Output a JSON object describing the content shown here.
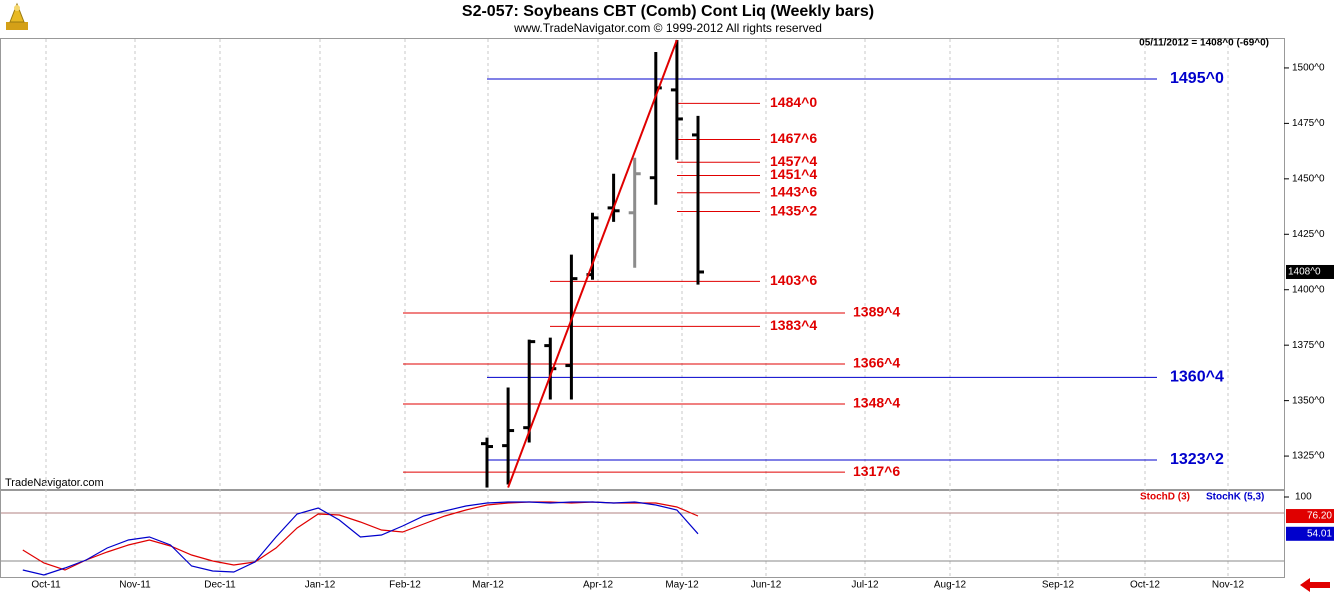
{
  "chart_data": [
    {
      "type": "ohlc",
      "title": "S2-057:  Soybeans CBT (Comb) Cont Liq  (Weekly bars)",
      "subtitle": "www.TradeNavigator.com © 1999-2012 All rights reserved",
      "header": "05/11/2012 = 1408^0 (-69^0)",
      "watermark": "TradeNavigator.com",
      "categories": [
        null,
        null,
        null,
        null,
        null,
        null,
        null,
        null,
        null,
        null,
        null,
        null,
        null,
        null,
        null,
        null,
        null,
        null,
        null,
        null,
        null,
        null,
        null,
        null,
        null,
        null,
        null,
        null,
        null,
        null,
        null,
        null,
        null
      ],
      "month_labels": [
        "Oct-11",
        "Nov-11",
        "Dec-11",
        "Jan-12",
        "Feb-12",
        "Mar-12",
        "Apr-12",
        "May-12",
        "Jun-12",
        "Jul-12",
        "Aug-12",
        "Sep-12",
        "Oct-12",
        "Nov-12"
      ],
      "open": [
        null,
        null,
        null,
        null,
        null,
        null,
        null,
        null,
        null,
        null,
        null,
        null,
        null,
        null,
        null,
        null,
        null,
        null,
        null,
        null,
        null,
        null,
        1330.6,
        1329.7,
        1337.8,
        1374.8,
        1365.8,
        1406.8,
        1436.9,
        1434.7,
        1450.5,
        1490.1,
        1469.8
      ],
      "high": [
        null,
        null,
        null,
        null,
        null,
        null,
        null,
        null,
        null,
        null,
        null,
        null,
        null,
        null,
        null,
        null,
        null,
        null,
        null,
        null,
        null,
        null,
        1333.3,
        1355.9,
        1377.5,
        1378.4,
        1415.8,
        1434.7,
        1452.3,
        1459.5,
        1507.2,
        1512.6,
        1478.4
      ],
      "low": [
        null,
        null,
        null,
        null,
        null,
        null,
        null,
        null,
        null,
        null,
        null,
        null,
        null,
        null,
        null,
        null,
        null,
        null,
        null,
        null,
        null,
        null,
        1310.8,
        1312.2,
        1331.1,
        1350.5,
        1350.5,
        1404.5,
        1430.6,
        1409.9,
        1438.3,
        1458.6,
        1402.3
      ],
      "close": [
        null,
        null,
        null,
        null,
        null,
        null,
        null,
        null,
        null,
        null,
        null,
        null,
        null,
        null,
        null,
        null,
        null,
        null,
        null,
        null,
        null,
        null,
        1329.3,
        1336.5,
        1376.6,
        1364.4,
        1405.0,
        1432.4,
        1435.6,
        1452.3,
        1491.0,
        1477.0,
        1408.0
      ],
      "bar_colors": [
        null,
        null,
        null,
        null,
        null,
        null,
        null,
        null,
        null,
        null,
        null,
        null,
        null,
        null,
        null,
        null,
        null,
        null,
        null,
        null,
        null,
        null,
        "#000000",
        "#000000",
        "#000000",
        "#000000",
        "#000000",
        "#000000",
        "#000000",
        "#8c8c8c",
        "#000000",
        "#000000",
        "#000000"
      ],
      "ylim": [
        1309.7,
        1513.5
      ],
      "yticks": [
        {
          "value": 1500,
          "label": "1500^0"
        },
        {
          "value": 1475,
          "label": "1475^0"
        },
        {
          "value": 1450,
          "label": "1450^0"
        },
        {
          "value": 1425,
          "label": "1425^0"
        },
        {
          "value": 1400,
          "label": "1400^0"
        },
        {
          "value": 1375,
          "label": "1375^0"
        },
        {
          "value": 1350,
          "label": "1350^0"
        },
        {
          "value": 1325,
          "label": "1325^0"
        }
      ],
      "last_price": {
        "value": 1408,
        "label": "1408^0"
      },
      "trendline": {
        "values": [
          1310.8,
          1512.6
        ],
        "color": "#e00000"
      },
      "levels": [
        {
          "value": 1495,
          "label": "1495^0",
          "color": "#0000cc"
        },
        {
          "value": 1484,
          "label": "1484^0",
          "color": "#e00000"
        },
        {
          "value": 1467.75,
          "label": "1467^6",
          "color": "#e00000"
        },
        {
          "value": 1457.5,
          "label": "1457^4",
          "color": "#e00000"
        },
        {
          "value": 1451.5,
          "label": "1451^4",
          "color": "#e00000"
        },
        {
          "value": 1443.75,
          "label": "1443^6",
          "color": "#e00000"
        },
        {
          "value": 1435.25,
          "label": "1435^2",
          "color": "#e00000"
        },
        {
          "value": 1403.75,
          "label": "1403^6",
          "color": "#e00000"
        },
        {
          "value": 1389.5,
          "label": "1389^4",
          "color": "#e00000"
        },
        {
          "value": 1383.5,
          "label": "1383^4",
          "color": "#e00000"
        },
        {
          "value": 1366.5,
          "label": "1366^4",
          "color": "#e00000"
        },
        {
          "value": 1360.5,
          "label": "1360^4",
          "color": "#0000cc"
        },
        {
          "value": 1348.5,
          "label": "1348^4",
          "color": "#e00000"
        },
        {
          "value": 1323.25,
          "label": "1323^2",
          "color": "#0000cc"
        },
        {
          "value": 1317.75,
          "label": "1317^6",
          "color": "#e00000"
        }
      ]
    },
    {
      "type": "line",
      "ylim": [
        -1.25,
        107.5
      ],
      "yticks": [
        100
      ],
      "levels": [
        80,
        20
      ],
      "series": [
        {
          "name": "StochD (3)",
          "color": "#e00000",
          "last_label": "76.20",
          "values": [
            33.8,
            17.5,
            8.8,
            21.3,
            31.3,
            40,
            46.3,
            38.8,
            27.5,
            20,
            15,
            18.8,
            36.3,
            61.3,
            78.8,
            77.5,
            68.8,
            58.8,
            56.3,
            66.3,
            76.3,
            83.8,
            90,
            92.5,
            93.8,
            93.8,
            92.5,
            93.8,
            92.5,
            92.5,
            92.5,
            87.5,
            76.2
          ]
        },
        {
          "name": "StochK (5,3)",
          "color": "#0000cc",
          "last_label": "54.01",
          "values": [
            8.8,
            2.5,
            11.3,
            21.3,
            36.3,
            46.3,
            50,
            40,
            13.8,
            7.5,
            6.3,
            18.8,
            50,
            78.8,
            86.3,
            71.3,
            50,
            52.5,
            63.8,
            76.3,
            82.5,
            88.8,
            92.5,
            93.8,
            93.8,
            92.5,
            93.8,
            93.8,
            92.5,
            93.8,
            90,
            83.8,
            54.01
          ]
        }
      ]
    }
  ]
}
